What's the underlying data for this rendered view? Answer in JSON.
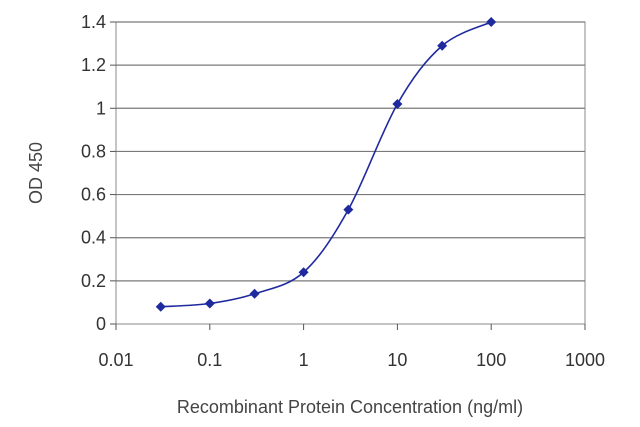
{
  "chart_data": {
    "type": "line",
    "title": "",
    "xlabel": "Recombinant Protein Concentration (ng/ml)",
    "ylabel": "OD 450",
    "x_scale": "log",
    "xlim": [
      0.01,
      1000
    ],
    "ylim": [
      0,
      1.4
    ],
    "x_ticks": [
      0.01,
      0.1,
      1,
      10,
      100,
      1000
    ],
    "x_tick_labels": [
      "0.01",
      "0.1",
      "1",
      "10",
      "100",
      "1000"
    ],
    "y_ticks": [
      0,
      0.2,
      0.4,
      0.6,
      0.8,
      1,
      1.2,
      1.4
    ],
    "y_tick_labels": [
      "0",
      "0.2",
      "0.4",
      "0.6",
      "0.8",
      "1",
      "1.2",
      "1.4"
    ],
    "grid": "horizontal",
    "legend": "none",
    "series": [
      {
        "x": [
          0.03,
          0.1,
          0.3,
          1,
          3,
          10,
          30,
          100
        ],
        "y": [
          0.08,
          0.095,
          0.14,
          0.24,
          0.53,
          1.02,
          1.29,
          1.4
        ],
        "color": "#1f2a9e",
        "marker": "diamond"
      }
    ]
  }
}
